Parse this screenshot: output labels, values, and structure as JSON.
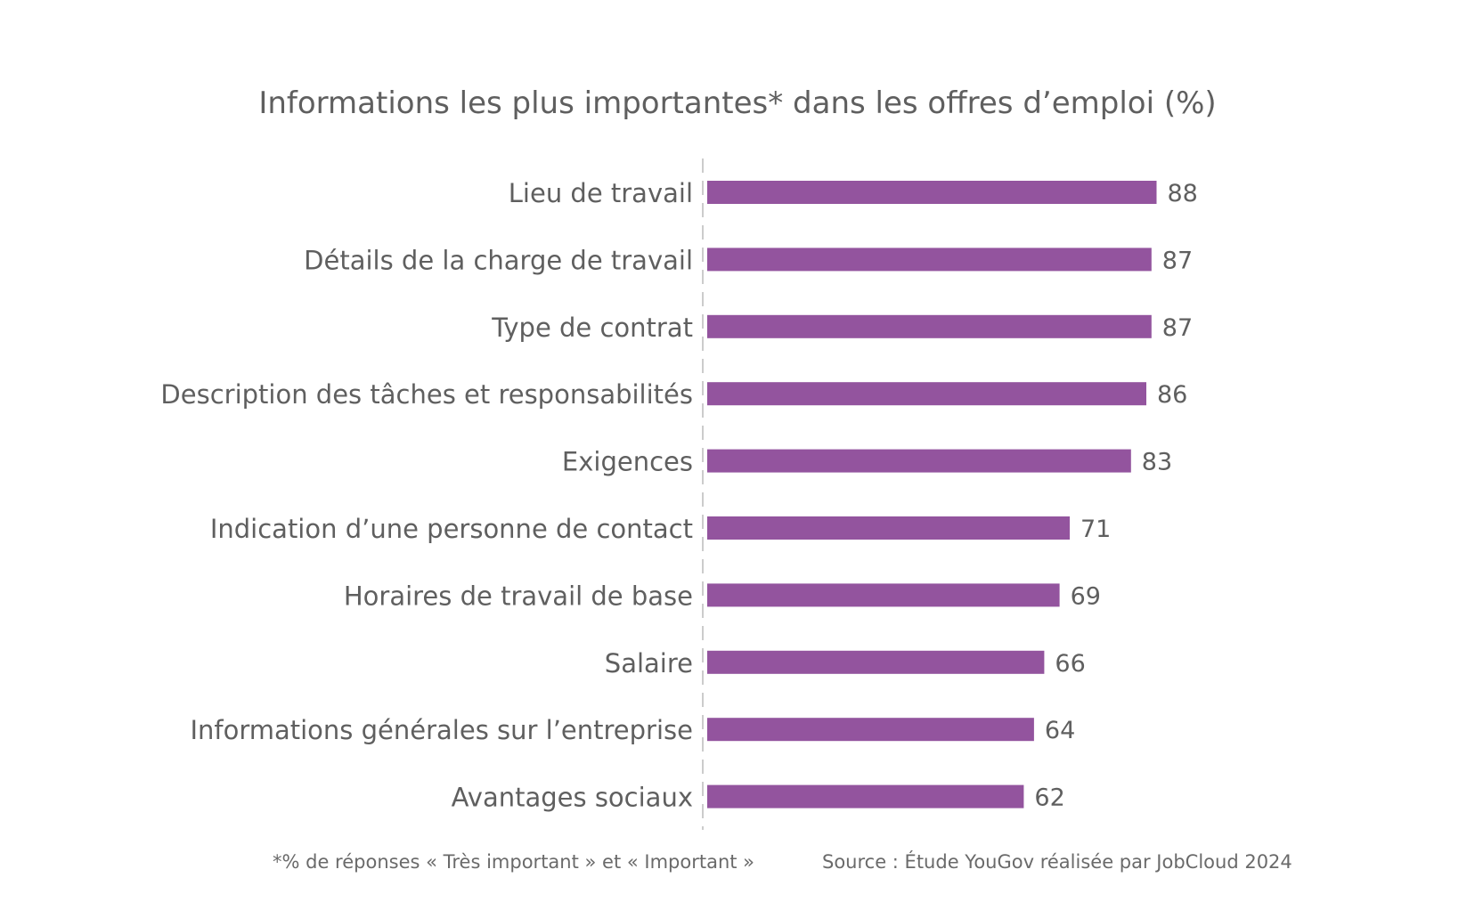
{
  "chart_data": {
    "type": "bar",
    "orientation": "horizontal",
    "title": "Informations les plus importantes* dans les offres d’emploi (%)",
    "xlabel": "",
    "ylabel": "",
    "xlim": [
      0,
      100
    ],
    "grid": false,
    "categories": [
      "Lieu de travail",
      "Détails de la charge de travail",
      "Type de contrat",
      "Description des tâches et responsabilités",
      "Exigences",
      "Indication d’une personne de contact",
      "Horaires de travail de base",
      "Salaire",
      "Informations générales sur l’entreprise",
      "Avantages sociaux"
    ],
    "values": [
      88,
      87,
      87,
      86,
      83,
      71,
      69,
      66,
      64,
      62
    ],
    "bar_color": "#93549e",
    "axis_color": "#cccccc",
    "text_color": "#5f5f5f"
  },
  "footnotes": {
    "left": "*% de réponses « Très important » et « Important »",
    "right": "Source : Étude YouGov réalisée par JobCloud 2024"
  }
}
